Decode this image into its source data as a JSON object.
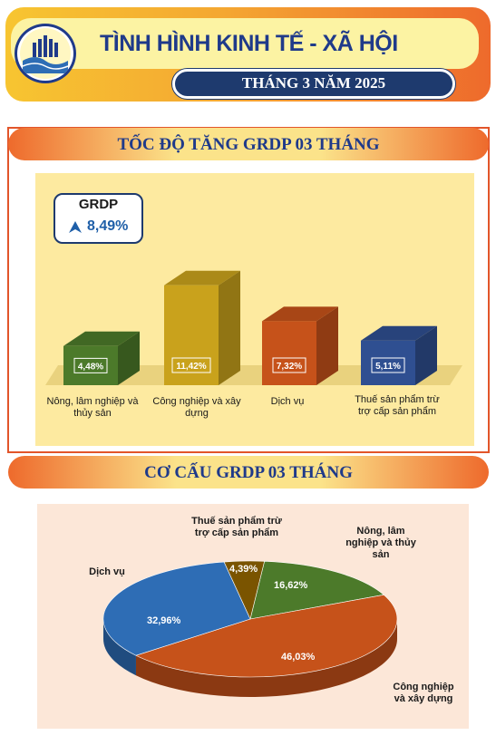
{
  "header": {
    "title": "TÌNH HÌNH KINH TẾ - XÃ HỘI",
    "period": "THÁNG 3 NĂM 2025"
  },
  "section1": {
    "title": "TỐC ĐỘ TĂNG GRDP 03 THÁNG",
    "card_label": "GRDP",
    "card_value": "8,49%"
  },
  "section2": {
    "title": "CƠ CẤU GRDP 03 THÁNG"
  },
  "colors": {
    "green": "#4c7a2a",
    "gold": "#c9a21c",
    "orange": "#c6521a",
    "blue": "#2f4f91",
    "pie_blue": "#2e6db5",
    "pie_brown": "#7a5400"
  },
  "chart_data": [
    {
      "type": "bar",
      "categories": [
        "Nông, lâm nghiệp và thủy sản",
        "Công nghiệp và xây dựng",
        "Dịch vụ",
        "Thuế sản phẩm trừ trợ cấp sản phẩm"
      ],
      "values": [
        4.48,
        11.42,
        7.32,
        5.11
      ],
      "value_labels": [
        "4,48%",
        "11,42%",
        "7,32%",
        "5,11%"
      ],
      "title": "TỐC ĐỘ TĂNG GRDP 03 THÁNG",
      "grid": false
    },
    {
      "type": "pie",
      "categories": [
        "Nông, lâm nghiệp và thủy sản",
        "Công nghiệp và xây dựng",
        "Dịch vụ",
        "Thuế sản phẩm trừ trợ cấp sản phẩm"
      ],
      "values": [
        16.62,
        46.03,
        32.96,
        4.39
      ],
      "value_labels": [
        "16,62%",
        "46,03%",
        "32,96%",
        "4,39%"
      ],
      "title": "CƠ CẤU GRDP 03 THÁNG"
    }
  ]
}
